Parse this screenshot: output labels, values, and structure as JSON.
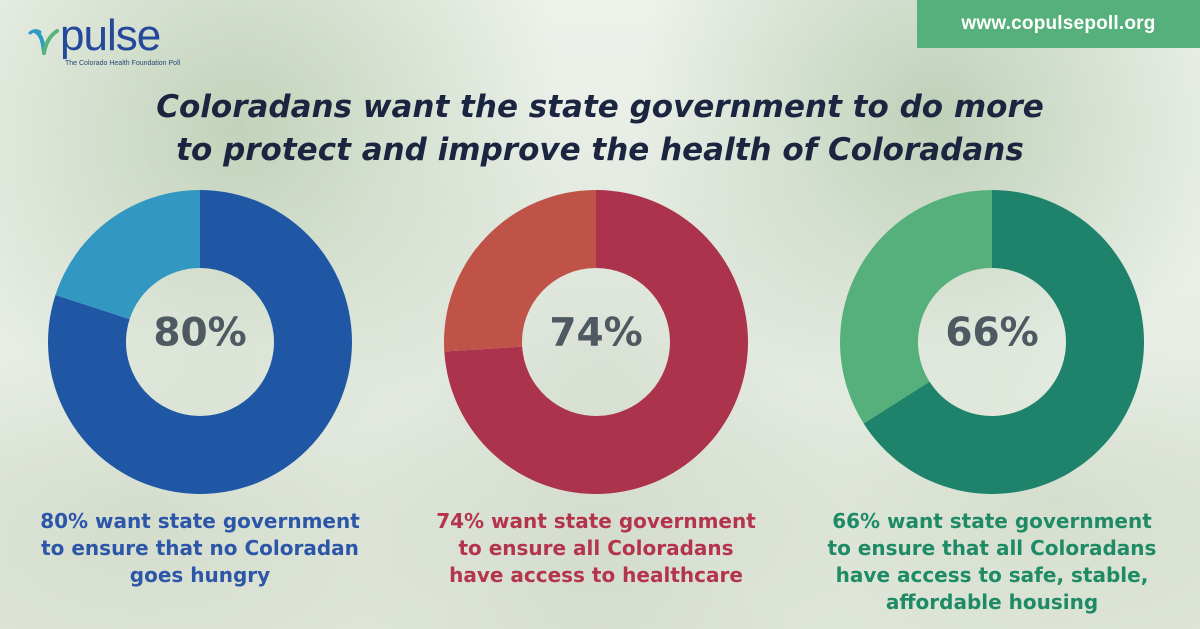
{
  "brand": {
    "logo_word": "pulse",
    "logo_subtitle": "The Colorado Health Foundation Poll"
  },
  "url": "www.copulsepoll.org",
  "title": {
    "line1": "Coloradans want the state government to do more",
    "line2": "to protect and improve the health of Coloradans"
  },
  "colors": {
    "blue_primary": "#1f57a5",
    "blue_secondary": "#3297c1",
    "red_primary": "#ab334b",
    "red_secondary": "#bf5348",
    "green_primary": "#1f826a",
    "green_secondary": "#55b07b"
  },
  "chart_data": [
    {
      "type": "pie",
      "center_label": "80%",
      "values": [
        80,
        20
      ],
      "caption": [
        "80% want state government",
        "to ensure that no Coloradan",
        "goes hungry"
      ]
    },
    {
      "type": "pie",
      "center_label": "74%",
      "values": [
        74,
        26
      ],
      "caption": [
        "74% want state government",
        "to ensure all Coloradans",
        "have access to healthcare"
      ]
    },
    {
      "type": "pie",
      "center_label": "66%",
      "values": [
        66,
        34
      ],
      "caption": [
        "66% want state government",
        "to ensure that all Coloradans",
        "have access to safe, stable,",
        "affordable housing"
      ]
    }
  ]
}
